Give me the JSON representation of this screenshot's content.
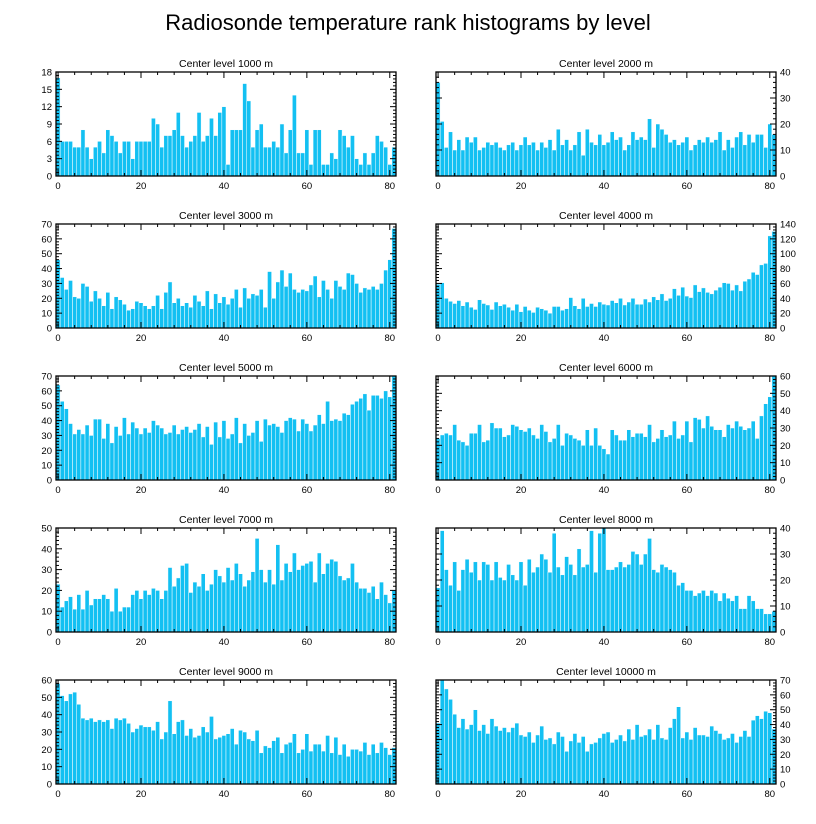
{
  "figure": {
    "title": "Radiosonde temperature rank histograms by level"
  },
  "colors": {
    "bar": "#13C0F2",
    "axis": "#000000",
    "background": "#ffffff"
  },
  "chart_data": [
    {
      "type": "bar",
      "title": "Center level 1000 m",
      "xlabel": "",
      "ylabel": "",
      "xlim": [
        -0.5,
        81.5
      ],
      "ylim": [
        0,
        18
      ],
      "xticks": [
        0,
        20,
        40,
        60,
        80
      ],
      "yticks": [
        0,
        3,
        6,
        9,
        12,
        15,
        18
      ],
      "yaxis_side": "left",
      "values": [
        17,
        6,
        6,
        6,
        5,
        5,
        8,
        5,
        3,
        5,
        6,
        4,
        8,
        7,
        6,
        4,
        6,
        6,
        3,
        6,
        6,
        6,
        6,
        10,
        9,
        5,
        7,
        7,
        8,
        11,
        7,
        5,
        6,
        7,
        11,
        6,
        7,
        10,
        7,
        11,
        12,
        2,
        8,
        8,
        8,
        16,
        13,
        5,
        8,
        9,
        5,
        5,
        6,
        5,
        9,
        4,
        8,
        14,
        4,
        4,
        8,
        2,
        8,
        8,
        2,
        2,
        4,
        3,
        8,
        7,
        5,
        7,
        3,
        2,
        4,
        2,
        4,
        7,
        6,
        5,
        2,
        5
      ]
    },
    {
      "type": "bar",
      "title": "Center level 2000 m",
      "xlabel": "",
      "ylabel": "",
      "xlim": [
        -0.5,
        81.5
      ],
      "ylim": [
        0,
        40
      ],
      "xticks": [
        0,
        20,
        40,
        60,
        80
      ],
      "yticks": [
        0,
        10,
        20,
        30,
        40
      ],
      "yaxis_side": "right",
      "values": [
        36,
        21,
        11,
        17,
        10,
        14,
        10,
        15,
        13,
        15,
        10,
        11,
        13,
        12,
        13,
        11,
        10,
        12,
        13,
        10,
        12,
        15,
        12,
        13,
        10,
        13,
        11,
        14,
        10,
        18,
        12,
        14,
        10,
        12,
        17,
        8,
        18,
        13,
        12,
        16,
        12,
        13,
        17,
        14,
        15,
        10,
        12,
        17,
        14,
        15,
        14,
        22,
        11,
        20,
        18,
        16,
        13,
        14,
        12,
        13,
        15,
        10,
        12,
        14,
        13,
        15,
        13,
        14,
        17,
        10,
        14,
        11,
        15,
        17,
        12,
        16,
        13,
        16,
        16,
        11,
        20,
        16
      ]
    },
    {
      "type": "bar",
      "title": "Center level 3000 m",
      "xlabel": "",
      "ylabel": "",
      "xlim": [
        -0.5,
        81.5
      ],
      "ylim": [
        0,
        70
      ],
      "xticks": [
        0,
        20,
        40,
        60,
        80
      ],
      "yticks": [
        0,
        10,
        20,
        30,
        40,
        50,
        60,
        70
      ],
      "yaxis_side": "left",
      "values": [
        46,
        34,
        26,
        32,
        21,
        20,
        30,
        28,
        18,
        25,
        20,
        15,
        24,
        13,
        21,
        19,
        16,
        12,
        13,
        18,
        17,
        15,
        13,
        15,
        22,
        13,
        24,
        31,
        17,
        20,
        15,
        17,
        14,
        22,
        18,
        15,
        25,
        13,
        23,
        17,
        21,
        16,
        20,
        26,
        14,
        27,
        20,
        23,
        22,
        26,
        14,
        38,
        20,
        31,
        39,
        28,
        37,
        26,
        24,
        26,
        25,
        29,
        35,
        21,
        32,
        26,
        20,
        32,
        28,
        26,
        37,
        36,
        30,
        24,
        27,
        26,
        28,
        26,
        30,
        39,
        46,
        67
      ]
    },
    {
      "type": "bar",
      "title": "Center level 4000 m",
      "xlabel": "",
      "ylabel": "",
      "xlim": [
        -0.5,
        81.5
      ],
      "ylim": [
        0,
        140
      ],
      "xticks": [
        0,
        20,
        40,
        60,
        80
      ],
      "yticks": [
        0,
        20,
        40,
        60,
        80,
        100,
        120,
        140
      ],
      "yaxis_side": "right",
      "values": [
        59,
        61,
        40,
        36,
        33,
        37,
        30,
        35,
        28,
        25,
        38,
        33,
        31,
        25,
        35,
        30,
        32,
        28,
        24,
        32,
        22,
        29,
        24,
        21,
        28,
        26,
        24,
        20,
        29,
        29,
        24,
        26,
        41,
        30,
        26,
        40,
        29,
        33,
        29,
        35,
        32,
        31,
        37,
        34,
        40,
        31,
        35,
        40,
        32,
        32,
        39,
        35,
        42,
        38,
        46,
        37,
        40,
        53,
        44,
        55,
        43,
        41,
        58,
        49,
        54,
        48,
        46,
        51,
        55,
        61,
        60,
        51,
        58,
        50,
        63,
        66,
        75,
        72,
        85,
        87,
        124,
        130
      ]
    },
    {
      "type": "bar",
      "title": "Center level 5000 m",
      "xlabel": "",
      "ylabel": "",
      "xlim": [
        -0.5,
        81.5
      ],
      "ylim": [
        0,
        70
      ],
      "xticks": [
        0,
        20,
        40,
        60,
        80
      ],
      "yticks": [
        0,
        10,
        20,
        30,
        40,
        50,
        60,
        70
      ],
      "yaxis_side": "left",
      "values": [
        64,
        53,
        48,
        38,
        31,
        34,
        31,
        37,
        30,
        41,
        41,
        28,
        38,
        25,
        36,
        30,
        42,
        31,
        39,
        35,
        31,
        35,
        32,
        40,
        37,
        35,
        31,
        32,
        37,
        31,
        34,
        36,
        32,
        34,
        38,
        29,
        36,
        24,
        39,
        29,
        40,
        28,
        31,
        42,
        25,
        38,
        30,
        32,
        40,
        26,
        41,
        37,
        38,
        36,
        32,
        40,
        42,
        41,
        33,
        41,
        38,
        33,
        37,
        44,
        38,
        53,
        40,
        41,
        40,
        45,
        44,
        51,
        53,
        55,
        58,
        47,
        57,
        57,
        55,
        60,
        56,
        70
      ]
    },
    {
      "type": "bar",
      "title": "Center level 6000 m",
      "xlabel": "",
      "ylabel": "",
      "xlim": [
        -0.5,
        81.5
      ],
      "ylim": [
        0,
        60
      ],
      "xticks": [
        0,
        20,
        40,
        60,
        80
      ],
      "yticks": [
        0,
        10,
        20,
        30,
        40,
        50,
        60
      ],
      "yaxis_side": "right",
      "values": [
        24,
        26,
        27,
        26,
        32,
        23,
        22,
        20,
        27,
        27,
        32,
        22,
        23,
        33,
        30,
        30,
        25,
        26,
        32,
        31,
        29,
        28,
        30,
        26,
        24,
        32,
        28,
        22,
        24,
        32,
        20,
        27,
        26,
        24,
        23,
        20,
        29,
        20,
        30,
        20,
        18,
        15,
        29,
        26,
        23,
        23,
        29,
        25,
        27,
        27,
        25,
        32,
        22,
        24,
        29,
        25,
        26,
        34,
        24,
        26,
        34,
        22,
        36,
        35,
        30,
        37,
        31,
        29,
        29,
        25,
        32,
        30,
        34,
        31,
        29,
        30,
        34,
        24,
        37,
        44,
        48,
        60
      ]
    },
    {
      "type": "bar",
      "title": "Center level 7000 m",
      "xlabel": "",
      "ylabel": "",
      "xlim": [
        -0.5,
        81.5
      ],
      "ylim": [
        0,
        50
      ],
      "xticks": [
        0,
        20,
        40,
        60,
        80
      ],
      "yticks": [
        0,
        10,
        20,
        30,
        40,
        50
      ],
      "yaxis_side": "left",
      "values": [
        23,
        12,
        15,
        17,
        11,
        18,
        11,
        20,
        13,
        16,
        16,
        18,
        16,
        10,
        21,
        10,
        12,
        12,
        18,
        20,
        16,
        20,
        18,
        21,
        20,
        16,
        20,
        31,
        22,
        26,
        32,
        33,
        19,
        24,
        22,
        28,
        20,
        23,
        30,
        27,
        24,
        31,
        25,
        33,
        28,
        22,
        25,
        29,
        45,
        30,
        24,
        30,
        23,
        42,
        25,
        33,
        29,
        38,
        30,
        32,
        33,
        34,
        24,
        38,
        28,
        33,
        35,
        34,
        27,
        25,
        26,
        33,
        24,
        21,
        21,
        19,
        22,
        16,
        24,
        18,
        14,
        20
      ]
    },
    {
      "type": "bar",
      "title": "Center level 8000 m",
      "xlabel": "",
      "ylabel": "",
      "xlim": [
        -0.5,
        81.5
      ],
      "ylim": [
        0,
        40
      ],
      "xticks": [
        0,
        20,
        40,
        60,
        80
      ],
      "yticks": [
        0,
        10,
        20,
        30,
        40
      ],
      "yaxis_side": "right",
      "values": [
        17,
        39,
        24,
        18,
        27,
        16,
        24,
        28,
        23,
        27,
        20,
        27,
        26,
        20,
        27,
        21,
        20,
        26,
        22,
        20,
        27,
        18,
        28,
        23,
        25,
        30,
        28,
        23,
        38,
        25,
        22,
        29,
        26,
        22,
        32,
        25,
        26,
        39,
        23,
        38,
        40,
        24,
        24,
        25,
        27,
        25,
        26,
        31,
        30,
        26,
        30,
        36,
        24,
        23,
        26,
        25,
        24,
        23,
        18,
        19,
        16,
        16,
        14,
        15,
        16,
        14,
        16,
        15,
        12,
        15,
        13,
        12,
        14,
        9,
        9,
        14,
        12,
        9,
        9,
        7,
        7,
        8
      ]
    },
    {
      "type": "bar",
      "title": "Center level 9000 m",
      "xlabel": "",
      "ylabel": "",
      "xlim": [
        -0.5,
        81.5
      ],
      "ylim": [
        0,
        60
      ],
      "xticks": [
        0,
        20,
        40,
        60,
        80
      ],
      "yticks": [
        0,
        10,
        20,
        30,
        40,
        50,
        60
      ],
      "yaxis_side": "left",
      "values": [
        58,
        51,
        48,
        52,
        53,
        46,
        38,
        37,
        38,
        36,
        37,
        36,
        37,
        32,
        38,
        37,
        38,
        35,
        30,
        32,
        34,
        33,
        33,
        31,
        36,
        26,
        30,
        48,
        29,
        36,
        37,
        28,
        32,
        27,
        28,
        33,
        30,
        39,
        26,
        27,
        28,
        29,
        32,
        23,
        31,
        30,
        26,
        25,
        31,
        18,
        22,
        21,
        25,
        27,
        18,
        23,
        24,
        29,
        18,
        20,
        29,
        19,
        23,
        23,
        19,
        28,
        18,
        27,
        17,
        23,
        16,
        20,
        20,
        19,
        24,
        17,
        23,
        18,
        24,
        21,
        17,
        21
      ]
    },
    {
      "type": "bar",
      "title": "Center level 10000 m",
      "xlabel": "",
      "ylabel": "",
      "xlim": [
        -0.5,
        81.5
      ],
      "ylim": [
        0,
        70
      ],
      "xticks": [
        0,
        20,
        40,
        60,
        80
      ],
      "yticks": [
        0,
        10,
        20,
        30,
        40,
        50,
        60,
        70
      ],
      "yaxis_side": "right",
      "values": [
        41,
        70,
        64,
        57,
        47,
        38,
        44,
        37,
        40,
        50,
        36,
        40,
        34,
        44,
        39,
        36,
        38,
        35,
        38,
        41,
        33,
        32,
        35,
        28,
        33,
        39,
        30,
        31,
        27,
        35,
        32,
        22,
        29,
        34,
        28,
        32,
        22,
        27,
        28,
        31,
        34,
        35,
        28,
        30,
        33,
        29,
        37,
        30,
        40,
        32,
        33,
        37,
        30,
        40,
        31,
        30,
        38,
        44,
        52,
        31,
        35,
        30,
        38,
        33,
        33,
        32,
        39,
        36,
        34,
        30,
        31,
        34,
        28,
        32,
        36,
        32,
        43,
        46,
        44,
        49,
        48,
        37
      ]
    }
  ]
}
